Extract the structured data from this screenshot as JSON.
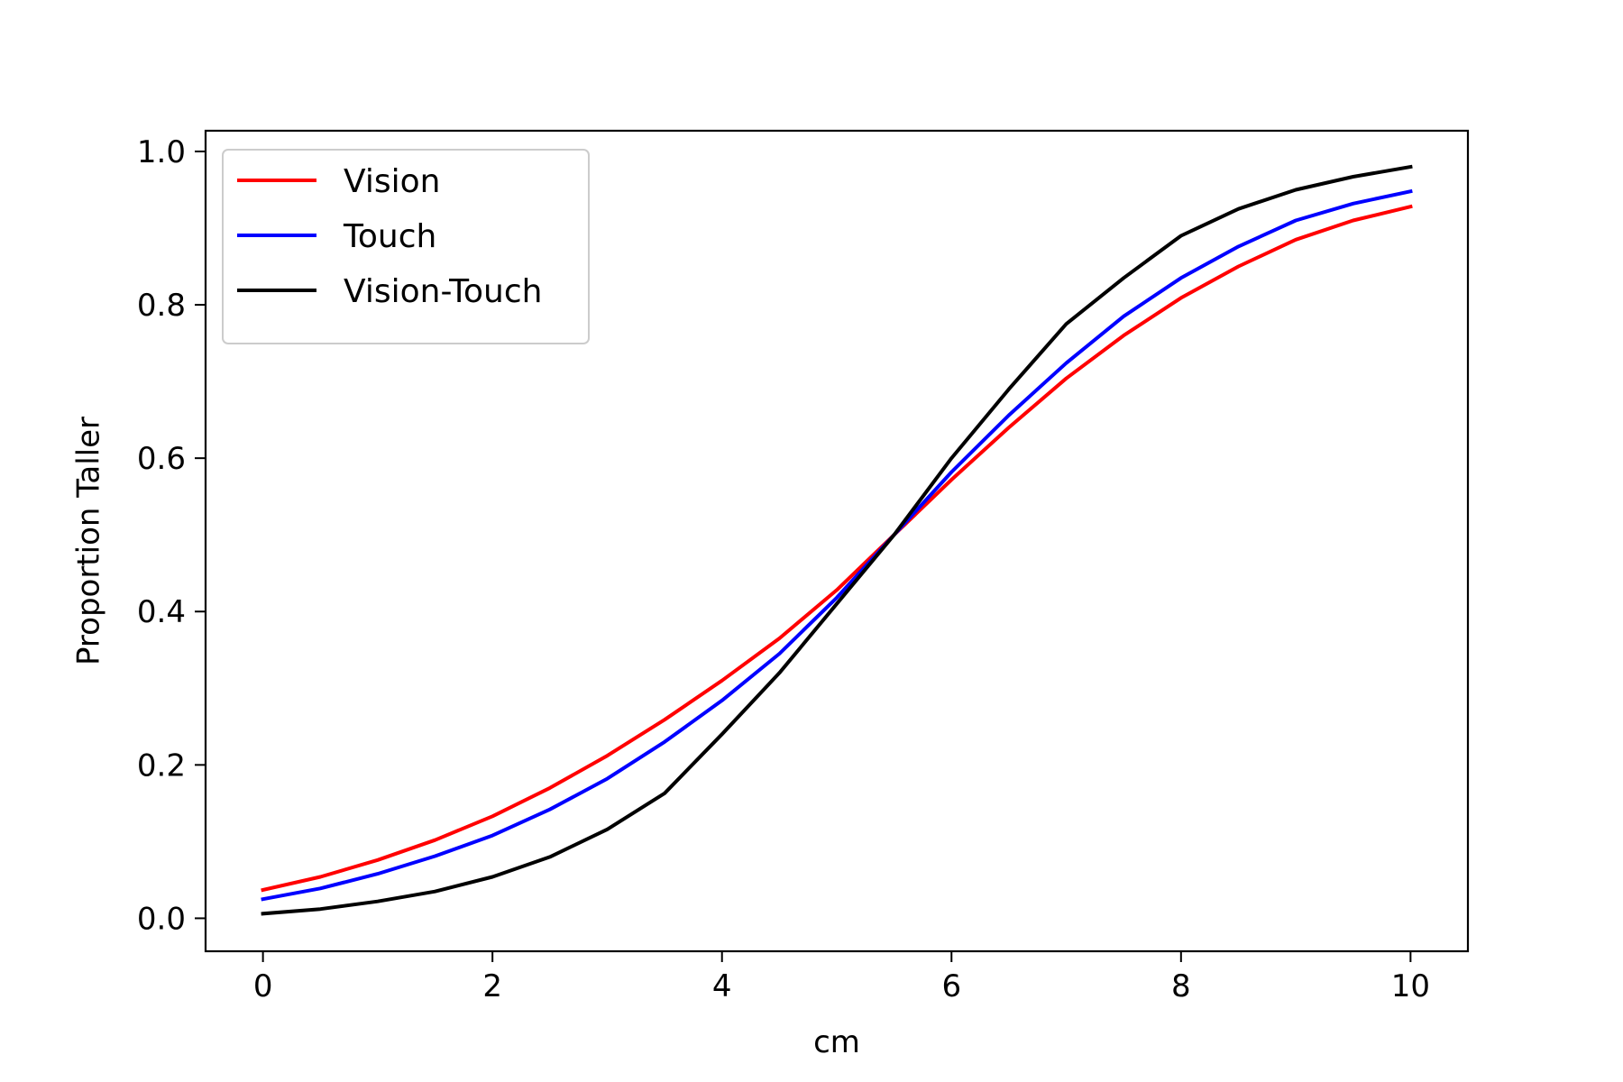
{
  "chart_data": {
    "type": "line",
    "title": "",
    "xlabel": "cm",
    "ylabel": "Proportion Taller",
    "xlim": [
      -0.5,
      10.5
    ],
    "ylim": [
      -0.043,
      1.027
    ],
    "xticks": [
      0,
      2,
      4,
      6,
      8,
      10
    ],
    "yticks": [
      0.0,
      0.2,
      0.4,
      0.6,
      0.8,
      1.0
    ],
    "xtick_labels": [
      "0",
      "2",
      "4",
      "6",
      "8",
      "10"
    ],
    "ytick_labels": [
      "0.0",
      "0.2",
      "0.4",
      "0.6",
      "0.8",
      "1.0"
    ],
    "grid": false,
    "legend_position": "top-left",
    "x": [
      0,
      0.5,
      1,
      1.5,
      2,
      2.5,
      3,
      3.5,
      4,
      4.5,
      5,
      5.5,
      6,
      6.5,
      7,
      7.5,
      8,
      8.5,
      9,
      9.5,
      10
    ],
    "series": [
      {
        "name": "Vision",
        "color": "#ff0000",
        "values": [
          0.037,
          0.054,
          0.076,
          0.102,
          0.133,
          0.17,
          0.212,
          0.259,
          0.31,
          0.365,
          0.428,
          0.5,
          0.572,
          0.64,
          0.704,
          0.76,
          0.809,
          0.85,
          0.885,
          0.91,
          0.928
        ]
      },
      {
        "name": "Touch",
        "color": "#0000ff",
        "values": [
          0.025,
          0.039,
          0.058,
          0.081,
          0.108,
          0.142,
          0.182,
          0.23,
          0.284,
          0.345,
          0.418,
          0.5,
          0.582,
          0.656,
          0.724,
          0.785,
          0.835,
          0.876,
          0.91,
          0.932,
          0.948
        ]
      },
      {
        "name": "Vision-Touch",
        "color": "#000000",
        "values": [
          0.006,
          0.012,
          0.022,
          0.035,
          0.054,
          0.08,
          0.116,
          0.163,
          0.24,
          0.32,
          0.41,
          0.5,
          0.6,
          0.69,
          0.775,
          0.835,
          0.89,
          0.925,
          0.95,
          0.967,
          0.98
        ]
      }
    ]
  }
}
